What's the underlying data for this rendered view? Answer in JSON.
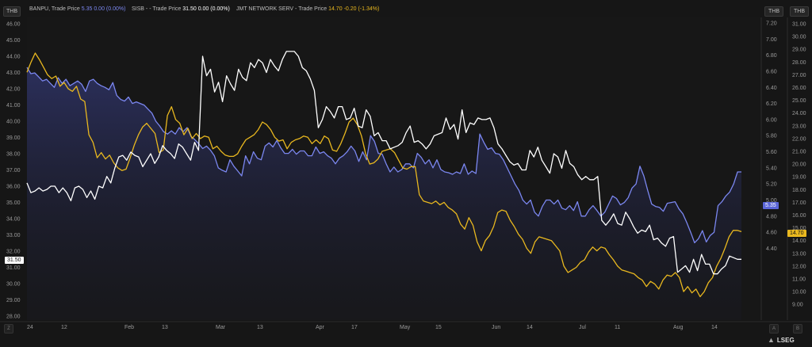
{
  "legend": [
    {
      "name": "BANPU, Trade Price",
      "value": "5.35",
      "change": "0.00 (0.00%)",
      "color": "#7b87f0"
    },
    {
      "name": "SISB -",
      "label2": "- Trade Price",
      "value": "31.50",
      "change": "0.00 (0.00%)",
      "color": "#ffffff"
    },
    {
      "name": "JMT NETWORK SERV",
      "label2": "- Trade Price",
      "value": "14.70",
      "change": "-0.20 (-1.34%)",
      "color": "#e9b81f"
    }
  ],
  "axes": {
    "left_unit": "THB",
    "right1_unit": "THB",
    "right2_unit": "THB",
    "left_ticks": [
      "46.00",
      "45.00",
      "44.00",
      "43.00",
      "42.00",
      "41.00",
      "40.00",
      "39.00",
      "38.00",
      "37.00",
      "36.00",
      "35.00",
      "34.00",
      "33.00",
      "32.00",
      "31.00",
      "30.00",
      "29.00",
      "28.00"
    ],
    "right1_ticks": [
      "7.20",
      "7.00",
      "6.80",
      "6.60",
      "6.40",
      "6.20",
      "6.00",
      "5.80",
      "5.60",
      "5.40",
      "5.20",
      "5.00",
      "4.80",
      "4.60",
      "4.40"
    ],
    "right2_ticks": [
      "31.00",
      "30.00",
      "29.00",
      "28.00",
      "27.00",
      "26.00",
      "25.00",
      "24.00",
      "23.00",
      "22.00",
      "21.00",
      "20.00",
      "19.00",
      "18.00",
      "17.00",
      "16.00",
      "15.00",
      "14.00",
      "13.00",
      "12.00",
      "11.00",
      "10.00",
      "9.00"
    ],
    "x_ticks": [
      "24",
      "12",
      "Feb",
      "13",
      "Mar",
      "13",
      "Apr",
      "17",
      "May",
      "15",
      "Jun",
      "14",
      "Jul",
      "11",
      "Aug",
      "14"
    ],
    "corner_left": "Z",
    "corner_mid": "A",
    "corner_right": "B"
  },
  "last_value_tags": {
    "left": "31.50",
    "right1": "5.35",
    "right2": "14.70"
  },
  "brand": "LSEG",
  "colors": {
    "banpu": "#7b87f0",
    "sisb": "#ffffff",
    "jmt": "#e9b81f",
    "background": "#161616"
  },
  "chart_data": {
    "type": "line",
    "x_axis": "date (Jan–Aug)",
    "series": [
      {
        "name": "SISB",
        "axis": "left",
        "ylim": [
          28,
          46
        ],
        "values": [
          36.2,
          35.6,
          35.7,
          35.9,
          35.7,
          35.8,
          36.0,
          36.0,
          35.6,
          35.9,
          35.6,
          35.1,
          35.9,
          36.0,
          35.8,
          35.3,
          35.7,
          35.2,
          36.0,
          35.9,
          36.6,
          36.2,
          37.1,
          37.8,
          37.9,
          37.6,
          38.1,
          37.9,
          37.8,
          37.2,
          37.6,
          38.0,
          37.4,
          37.8,
          38.5,
          38.2,
          38.0,
          37.7,
          38.6,
          38.4,
          38.0,
          37.6,
          38.7,
          38.2,
          44.0,
          42.8,
          43.2,
          41.8,
          42.4,
          41.2,
          42.8,
          42.3,
          41.9,
          43.2,
          42.7,
          42.5,
          43.6,
          43.3,
          43.8,
          43.6,
          43.0,
          43.8,
          43.4,
          43.1,
          43.8,
          44.3,
          44.3,
          44.3,
          44.0,
          43.3,
          43.1,
          42.6,
          41.9,
          39.6,
          40.1,
          40.9,
          40.6,
          40.2,
          40.9,
          40.9,
          40.1,
          40.2,
          40.8,
          39.7,
          39.6,
          40.7,
          40.3,
          39.1,
          39.3,
          38.8,
          38.8,
          38.3,
          38.4,
          38.5,
          38.7,
          39.3,
          39.7,
          38.7,
          38.8,
          38.6,
          38.3,
          38.6,
          39.1,
          39.2,
          39.3,
          40.2,
          39.5,
          39.8,
          38.9,
          40.7,
          39.3,
          39.9,
          39.8,
          40.2,
          40.1,
          40.1,
          40.2,
          39.6,
          38.6,
          38.3,
          37.9,
          37.5,
          37.3,
          37.4,
          37.0,
          37.0,
          38.2,
          37.8,
          38.4,
          37.6,
          37.2,
          36.8,
          38.0,
          37.8,
          37.1,
          38.2,
          37.4,
          37.2,
          36.7,
          36.4,
          36.6,
          36.4,
          36.4,
          36.6,
          33.9,
          33.6,
          33.9,
          34.3,
          33.7,
          33.6,
          34.4,
          34.0,
          33.5,
          33.1,
          33.3,
          33.2,
          33.6,
          32.7,
          32.8,
          32.5,
          32.3,
          32.8,
          32.9,
          30.7,
          30.9,
          31.1,
          30.7,
          31.5,
          30.8,
          31.8,
          31.2,
          31.2,
          30.6,
          30.6,
          30.9,
          31.1,
          31.7,
          31.6,
          31.5,
          31.5
        ],
        "color": "#ffffff"
      },
      {
        "name": "BANPU",
        "axis": "right1",
        "ylim": [
          4.3,
          7.3
        ],
        "values": [
          6.65,
          6.57,
          6.58,
          6.53,
          6.48,
          6.5,
          6.45,
          6.4,
          6.52,
          6.45,
          6.5,
          6.42,
          6.45,
          6.48,
          6.44,
          6.35,
          6.48,
          6.5,
          6.45,
          6.42,
          6.4,
          6.37,
          6.46,
          6.3,
          6.25,
          6.23,
          6.28,
          6.2,
          6.22,
          6.2,
          6.18,
          6.13,
          6.08,
          5.98,
          5.92,
          5.85,
          5.82,
          5.86,
          5.82,
          5.9,
          5.85,
          5.9,
          5.79,
          5.75,
          5.7,
          5.64,
          5.67,
          5.62,
          5.55,
          5.4,
          5.37,
          5.35,
          5.5,
          5.42,
          5.36,
          5.3,
          5.55,
          5.45,
          5.6,
          5.52,
          5.5,
          5.67,
          5.71,
          5.66,
          5.74,
          5.65,
          5.58,
          5.58,
          5.63,
          5.57,
          5.61,
          5.61,
          5.55,
          5.55,
          5.66,
          5.58,
          5.6,
          5.55,
          5.52,
          5.45,
          5.52,
          5.55,
          5.6,
          5.67,
          5.61,
          5.48,
          5.6,
          5.5,
          5.8,
          5.73,
          5.58,
          5.57,
          5.45,
          5.35,
          5.41,
          5.35,
          5.38,
          5.45,
          5.45,
          5.4,
          5.58,
          5.53,
          5.45,
          5.5,
          5.4,
          5.5,
          5.38,
          5.35,
          5.34,
          5.32,
          5.35,
          5.33,
          5.45,
          5.32,
          5.36,
          5.33,
          5.82,
          5.72,
          5.63,
          5.65,
          5.58,
          5.57,
          5.5,
          5.4,
          5.3,
          5.2,
          5.12,
          5.0,
          4.95,
          5.0,
          4.85,
          4.8,
          4.92,
          5.0,
          5.0,
          4.95,
          5.0,
          4.9,
          4.88,
          4.93,
          4.87,
          4.98,
          4.8,
          4.8,
          4.88,
          4.93,
          4.87,
          4.8,
          4.85,
          4.95,
          5.05,
          5.02,
          4.94,
          4.97,
          5.03,
          5.15,
          5.2,
          5.42,
          5.3,
          5.12,
          4.95,
          4.92,
          4.91,
          4.86,
          4.96,
          4.97,
          4.98,
          4.89,
          4.83,
          4.72,
          4.6,
          4.47,
          4.52,
          4.62,
          4.48,
          4.56,
          4.6,
          4.93,
          4.98,
          5.05,
          5.1,
          5.2,
          5.35,
          5.35
        ],
        "color": "#7b87f0"
      },
      {
        "name": "JMT NETWORK SERV",
        "axis": "right2",
        "ylim": [
          8.3,
          31.7
        ],
        "values": [
          27.2,
          28.0,
          28.7,
          28.2,
          27.6,
          27.0,
          26.7,
          26.9,
          26.1,
          26.4,
          25.9,
          25.7,
          26.1,
          25.1,
          24.9,
          22.3,
          21.7,
          20.5,
          20.9,
          20.4,
          20.7,
          20.1,
          19.7,
          19.5,
          19.6,
          20.5,
          21.5,
          22.3,
          22.9,
          23.2,
          22.8,
          22.4,
          20.9,
          21.1,
          23.8,
          24.5,
          23.5,
          23.2,
          22.3,
          22.8,
          22.0,
          22.4,
          22.0,
          22.2,
          22.1,
          21.2,
          21.4,
          21.0,
          20.7,
          20.6,
          20.6,
          20.8,
          21.4,
          21.9,
          22.1,
          22.3,
          22.7,
          23.3,
          23.1,
          22.7,
          22.1,
          21.8,
          21.9,
          21.2,
          21.7,
          21.9,
          22.0,
          22.2,
          22.1,
          21.6,
          21.9,
          21.6,
          22.2,
          22.0,
          21.1,
          21.0,
          21.6,
          22.4,
          23.3,
          23.6,
          23.1,
          22.2,
          20.8,
          20.0,
          20.1,
          20.4,
          21.0,
          21.1,
          21.2,
          20.9,
          20.3,
          19.7,
          19.6,
          19.8,
          19.8,
          17.6,
          17.1,
          17.0,
          16.9,
          17.1,
          16.8,
          17.0,
          16.6,
          16.4,
          16.1,
          15.3,
          14.9,
          15.8,
          15.2,
          13.9,
          13.2,
          14.0,
          14.4,
          15.1,
          16.2,
          16.4,
          16.3,
          15.6,
          15.1,
          14.5,
          14.1,
          13.4,
          13.0,
          13.9,
          14.3,
          14.2,
          14.1,
          14.0,
          13.6,
          13.2,
          12.0,
          11.5,
          11.7,
          11.9,
          12.3,
          12.5,
          13.1,
          13.5,
          13.2,
          13.5,
          13.4,
          12.9,
          12.5,
          12.0,
          11.7,
          11.6,
          11.5,
          11.4,
          11.1,
          10.9,
          10.4,
          10.8,
          10.6,
          10.2,
          10.9,
          11.3,
          11.2,
          11.5,
          11.1,
          10.0,
          10.4,
          9.9,
          10.2,
          9.6,
          10.0,
          10.7,
          11.1,
          12.0,
          12.6,
          13.4,
          14.3,
          14.8,
          14.8,
          14.7
        ],
        "color": "#e9b81f"
      }
    ],
    "legend_position": "top-left",
    "grid": false
  }
}
